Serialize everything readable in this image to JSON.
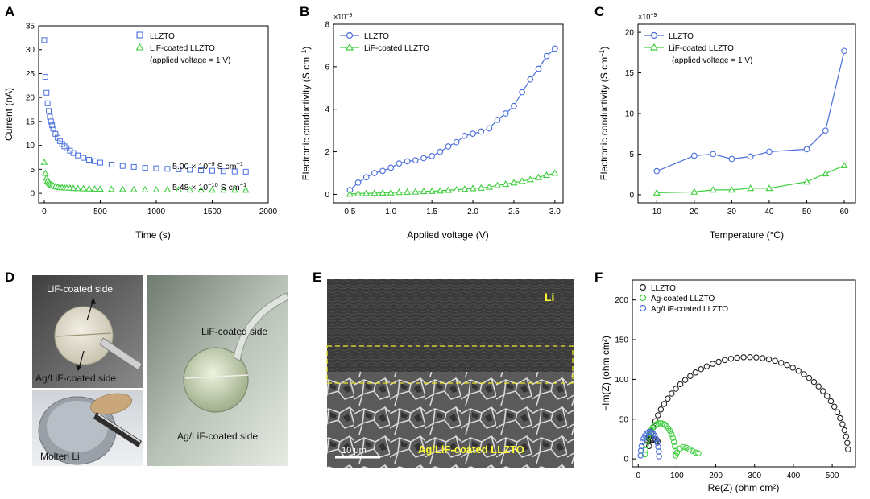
{
  "panel_letters": {
    "A": "A",
    "B": "B",
    "C": "C",
    "D": "D",
    "E": "E",
    "F": "F"
  },
  "colors": {
    "blue": "#4a6fdc",
    "green": "#3ecf3e",
    "black": "#222222",
    "yellow": "#ffff33"
  },
  "chart_data": [
    {
      "id": "A",
      "type": "scatter",
      "xlabel": "Time (s)",
      "ylabel": "Current (nA)",
      "xlim": [
        -50,
        2000
      ],
      "ylim": [
        -2,
        35
      ],
      "xticks": [
        0,
        500,
        1000,
        1500,
        2000
      ],
      "yticks": [
        0,
        5,
        10,
        15,
        20,
        25,
        30,
        35
      ],
      "legend": [
        "LLZTO",
        "LiF-coated LLZTO"
      ],
      "legend_note": "(applied voltage = 1 V)",
      "annotations": {
        "llzto_base": "5.00 × 10",
        "llzto_exp": "−9",
        "llzto_unit": " S cm",
        "lif_base": "5.48 × 10",
        "lif_exp": "−10",
        "lif_unit": " S cm",
        "unit_exp": "−1"
      },
      "series": [
        {
          "name": "LLZTO",
          "x": [
            0,
            10,
            20,
            30,
            40,
            50,
            60,
            70,
            80,
            100,
            120,
            140,
            160,
            180,
            200,
            230,
            260,
            300,
            350,
            400,
            450,
            500,
            600,
            700,
            800,
            900,
            1000,
            1100,
            1200,
            1300,
            1400,
            1500,
            1600,
            1700,
            1800
          ],
          "y": [
            32.0,
            24.3,
            21.0,
            18.8,
            17.2,
            16.0,
            15.0,
            14.2,
            13.5,
            12.4,
            11.6,
            10.9,
            10.3,
            9.8,
            9.4,
            8.9,
            8.4,
            7.9,
            7.4,
            7.0,
            6.7,
            6.4,
            6.0,
            5.7,
            5.5,
            5.3,
            5.2,
            5.1,
            5.0,
            4.9,
            4.8,
            4.7,
            4.6,
            4.55,
            4.5
          ]
        },
        {
          "name": "LiF-coated LLZTO",
          "x": [
            0,
            10,
            20,
            30,
            40,
            50,
            60,
            70,
            80,
            100,
            120,
            140,
            160,
            180,
            200,
            230,
            260,
            300,
            350,
            400,
            450,
            500,
            600,
            700,
            800,
            900,
            1000,
            1100,
            1200,
            1300,
            1400,
            1500,
            1600,
            1700,
            1800
          ],
          "y": [
            6.5,
            4.2,
            3.2,
            2.6,
            2.3,
            2.0,
            1.85,
            1.7,
            1.6,
            1.45,
            1.35,
            1.28,
            1.22,
            1.18,
            1.14,
            1.1,
            1.06,
            1.02,
            0.98,
            0.95,
            0.92,
            0.9,
            0.86,
            0.83,
            0.8,
            0.78,
            0.76,
            0.75,
            0.74,
            0.73,
            0.72,
            0.71,
            0.7,
            0.7,
            0.69
          ]
        }
      ]
    },
    {
      "id": "B",
      "type": "line",
      "xlabel": "Applied voltage (V)",
      "ylabel": "Electronic conductivity (S cm",
      "ylabel_exp": "−1",
      "ylabel_close": ")",
      "multiplier_base": "×10",
      "multiplier_exp": "−9",
      "xlim": [
        0.3,
        3.1
      ],
      "ylim": [
        -0.4,
        8
      ],
      "xticks": [
        "0.5",
        "1.0",
        "1.5",
        "2.0",
        "2.5",
        "3.0"
      ],
      "yticks": [
        "0",
        "2",
        "4",
        "6",
        "8"
      ],
      "legend": [
        "LLZTO",
        "LiF-coated LLZTO"
      ],
      "series": [
        {
          "name": "LLZTO",
          "x": [
            0.5,
            0.6,
            0.7,
            0.8,
            0.9,
            1.0,
            1.1,
            1.2,
            1.3,
            1.4,
            1.5,
            1.6,
            1.7,
            1.8,
            1.9,
            2.0,
            2.1,
            2.2,
            2.3,
            2.4,
            2.5,
            2.6,
            2.7,
            2.8,
            2.9,
            3.0
          ],
          "y": [
            0.2,
            0.55,
            0.8,
            1.0,
            1.1,
            1.25,
            1.45,
            1.55,
            1.6,
            1.7,
            1.8,
            2.0,
            2.25,
            2.45,
            2.75,
            2.85,
            2.95,
            3.1,
            3.5,
            3.8,
            4.15,
            4.8,
            5.4,
            5.9,
            6.5,
            6.85
          ]
        },
        {
          "name": "LiF-coated LLZTO",
          "x": [
            0.5,
            0.6,
            0.7,
            0.8,
            0.9,
            1.0,
            1.1,
            1.2,
            1.3,
            1.4,
            1.5,
            1.6,
            1.7,
            1.8,
            1.9,
            2.0,
            2.1,
            2.2,
            2.3,
            2.4,
            2.5,
            2.6,
            2.7,
            2.8,
            2.9,
            3.0
          ],
          "y": [
            0.02,
            0.04,
            0.05,
            0.06,
            0.07,
            0.08,
            0.1,
            0.11,
            0.12,
            0.14,
            0.15,
            0.17,
            0.2,
            0.22,
            0.25,
            0.28,
            0.3,
            0.35,
            0.42,
            0.48,
            0.55,
            0.62,
            0.7,
            0.8,
            0.9,
            1.0
          ]
        }
      ]
    },
    {
      "id": "C",
      "type": "line",
      "xlabel": "Temperature (°C)",
      "ylabel": "Electronic conductivity (S cm",
      "ylabel_exp": "−1",
      "ylabel_close": ")",
      "multiplier_base": "×10",
      "multiplier_exp": "−9",
      "xlim": [
        5,
        63
      ],
      "ylim": [
        -1,
        21
      ],
      "xticks": [
        "10",
        "20",
        "30",
        "40",
        "50",
        "60"
      ],
      "yticks": [
        "0",
        "5",
        "10",
        "15",
        "20"
      ],
      "legend": [
        "LLZTO",
        "LiF-coated LLZTO"
      ],
      "legend_note": "(applied voltage = 1 V)",
      "series": [
        {
          "name": "LLZTO",
          "x": [
            10,
            20,
            25,
            30,
            35,
            40,
            50,
            55,
            60
          ],
          "y": [
            2.9,
            4.8,
            5.0,
            4.4,
            4.7,
            5.3,
            5.6,
            7.9,
            17.7
          ]
        },
        {
          "name": "LiF-coated LLZTO",
          "x": [
            10,
            20,
            25,
            30,
            35,
            40,
            50,
            55,
            60
          ],
          "y": [
            0.25,
            0.35,
            0.6,
            0.6,
            0.8,
            0.8,
            1.6,
            2.6,
            3.6
          ]
        }
      ]
    },
    {
      "id": "F",
      "type": "scatter",
      "xlabel": "Re(Z) (ohm cm²)",
      "ylabel": "−Im(Z) (ohm cm²)",
      "xlim": [
        -15,
        560
      ],
      "ylim": [
        -10,
        225
      ],
      "xticks": [
        0,
        100,
        200,
        300,
        400,
        500
      ],
      "yticks": [
        0,
        50,
        100,
        150,
        200
      ],
      "legend": [
        "LLZTO",
        "Ag-coated LLZTO",
        "Ag/LiF-coated LLZTO"
      ],
      "series": [
        {
          "name": "LLZTO",
          "arc": {
            "center": 284,
            "radius": 258,
            "ymax": 128
          },
          "tail_x": [
            20,
            22,
            26,
            30,
            34,
            38,
            42,
            46,
            50
          ],
          "tail_y": [
            18,
            24,
            26,
            25,
            23,
            24,
            25,
            23,
            22
          ]
        },
        {
          "name": "Ag-coated LLZTO",
          "arc": {
            "center": 57,
            "radius": 40,
            "ymax": 45
          },
          "tail_x": [
            100,
            108,
            116,
            124,
            132,
            140,
            148,
            155
          ],
          "tail_y": [
            8,
            13,
            15,
            14,
            12,
            10,
            8,
            7
          ]
        },
        {
          "name": "Ag/LiF-coated LLZTO",
          "arc": {
            "center": 30,
            "radius": 24,
            "ymax": 34
          },
          "tail_x": [],
          "tail_y": []
        }
      ]
    }
  ],
  "photo_D": {
    "lif_side_1": "LiF-coated side",
    "aglif_side_1": "Ag/LiF-coated side",
    "molten": "Molten Li",
    "lif_side_2": "LiF-coated side",
    "aglif_side_2": "Ag/LiF-coated side"
  },
  "photo_E": {
    "li_label": "Li",
    "scale": "10 μm",
    "bottom_label": "Ag/LiF-coated LLZTO"
  }
}
